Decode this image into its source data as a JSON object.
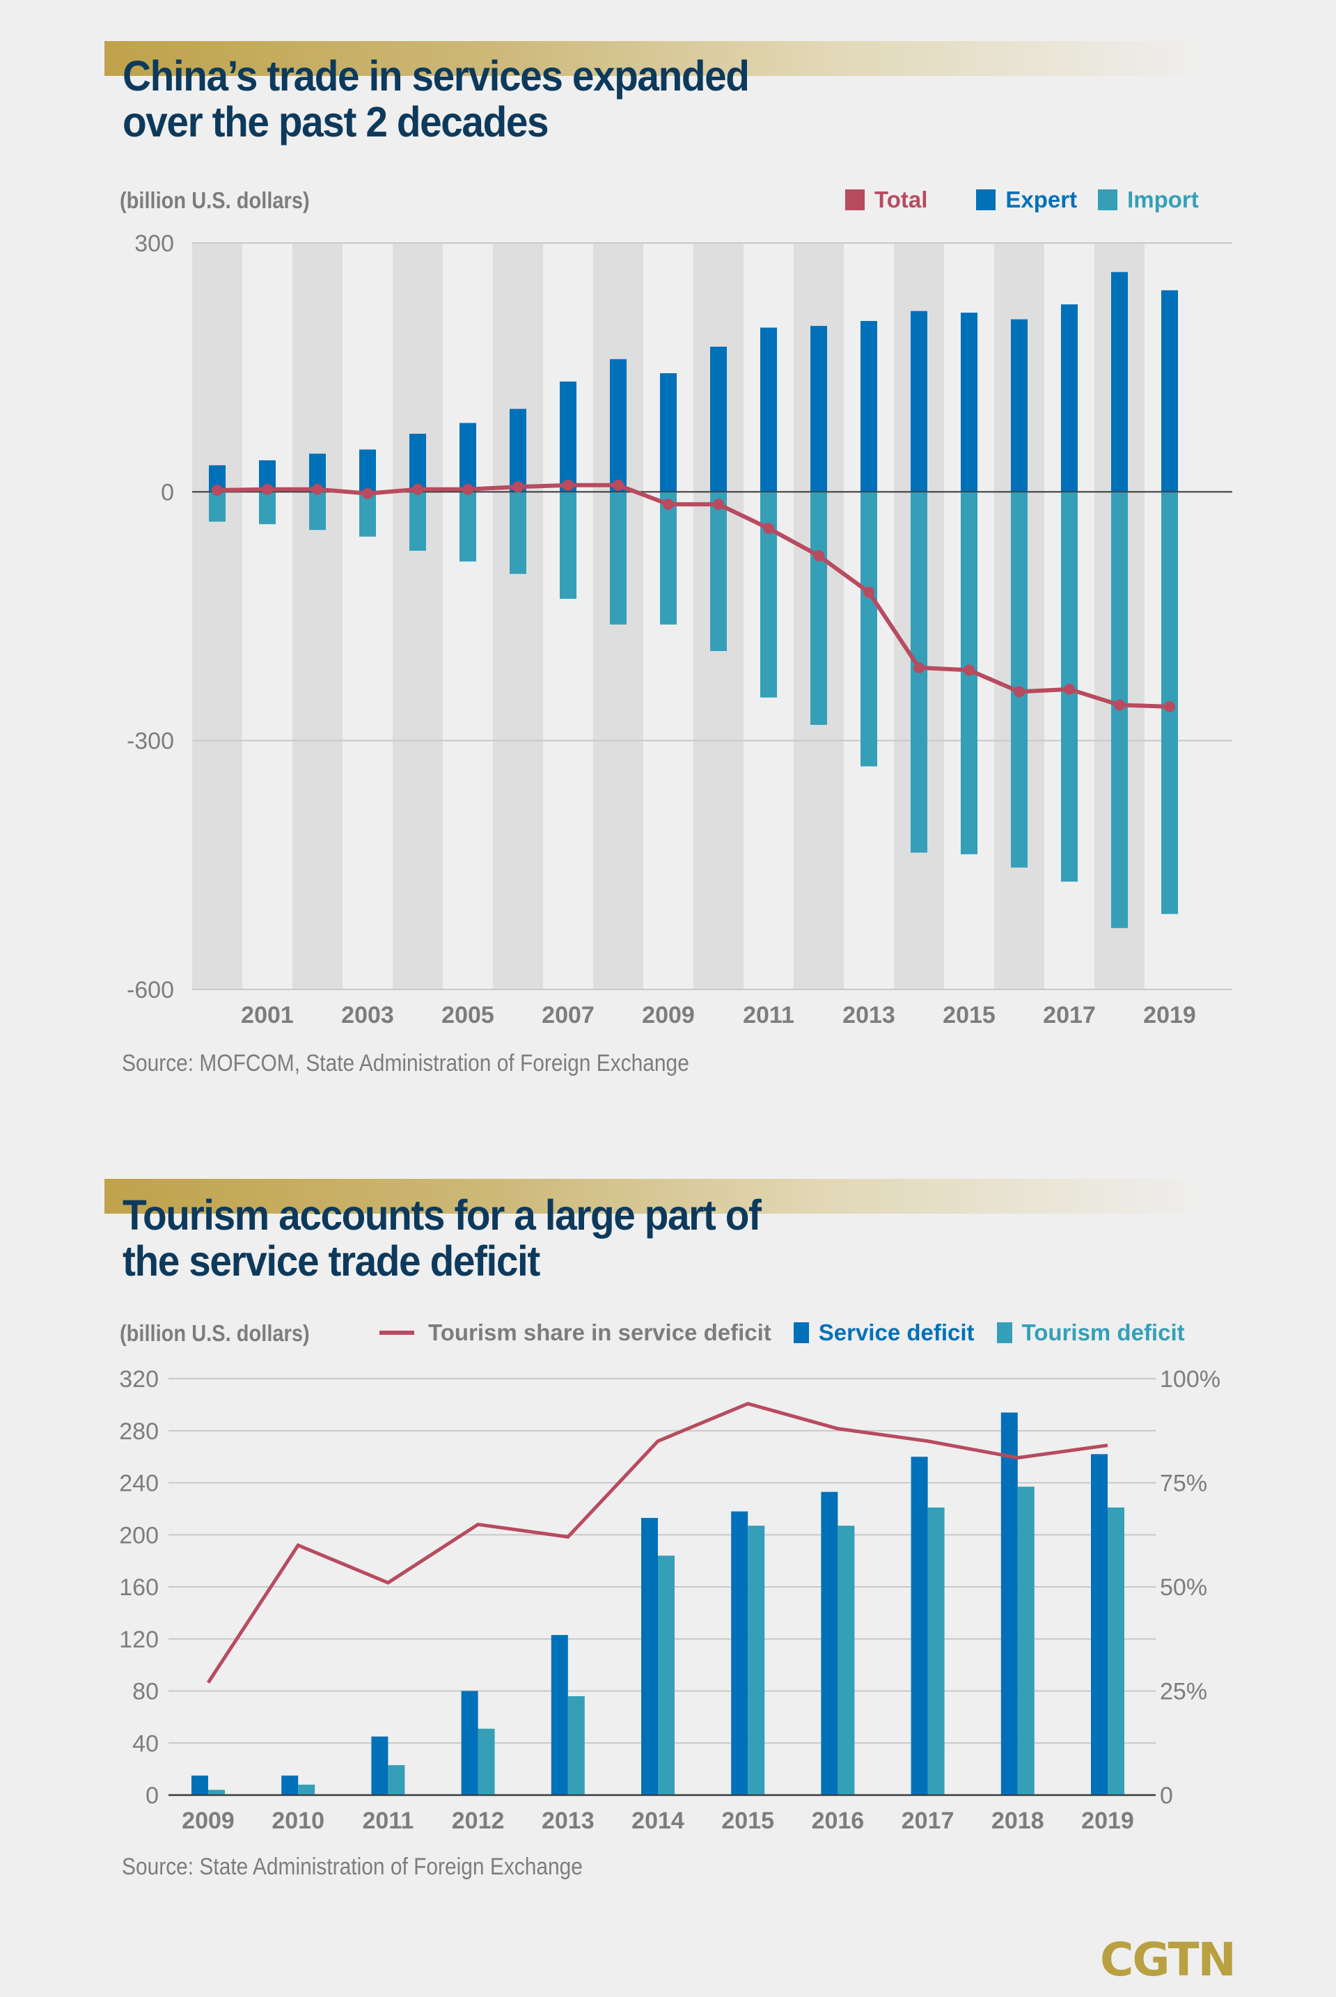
{
  "colors": {
    "total": "#b84b5f",
    "export": "#0070b8",
    "import": "#359fb8",
    "axis_text": "#7d7d7d",
    "title": "#0d3a5c",
    "brand_gold": "#b9a040",
    "stripe": "#dedede",
    "grid": "#c8c8c8"
  },
  "chart1": {
    "title_line1": "China’s trade in services expanded",
    "title_line2": "over the past 2 decades",
    "unit": "(billion U.S. dollars)",
    "source": "Source: MOFCOM, State Administration of Foreign Exchange"
  },
  "chart2": {
    "title_line1": "Tourism accounts for a large part of",
    "title_line2": "the service trade deficit",
    "unit": "(billion U.S. dollars)",
    "source": "Source: State Administration of Foreign Exchange"
  },
  "logo": "CGTN",
  "chart_data": [
    {
      "type": "bar",
      "title": "China’s trade in services expanded over the past 2 decades",
      "ylabel": "(billion U.S. dollars)",
      "xlabel": "",
      "ylim": [
        -600,
        300
      ],
      "yticks": [
        300,
        0,
        -300,
        -600
      ],
      "ytick_labels": [
        "300",
        "0",
        "-300",
        "-600"
      ],
      "x": [
        2000,
        2001,
        2002,
        2003,
        2004,
        2005,
        2006,
        2007,
        2008,
        2009,
        2010,
        2011,
        2012,
        2013,
        2014,
        2015,
        2016,
        2017,
        2018,
        2019
      ],
      "xtick_labels": [
        "2001",
        "2003",
        "2005",
        "2007",
        "2009",
        "2011",
        "2013",
        "2015",
        "2017",
        "2019"
      ],
      "legend": [
        "Total",
        "Expert",
        "Import"
      ],
      "legend_position": "top-right",
      "grid": true,
      "series": [
        {
          "name": "Total",
          "kind": "line",
          "values": [
            2,
            3,
            3,
            -2,
            3,
            3,
            6,
            8,
            8,
            -15,
            -15,
            -44,
            -77,
            -121,
            -212,
            -215,
            -241,
            -238,
            -257,
            -259
          ]
        },
        {
          "name": "Expert",
          "kind": "bar",
          "values": [
            32,
            38,
            46,
            51,
            70,
            83,
            100,
            133,
            160,
            143,
            175,
            198,
            200,
            206,
            218,
            216,
            208,
            226,
            265,
            243
          ]
        },
        {
          "name": "Import",
          "kind": "bar",
          "values": [
            -36,
            -39,
            -46,
            -54,
            -71,
            -84,
            -99,
            -129,
            -160,
            -160,
            -192,
            -248,
            -281,
            -331,
            -435,
            -437,
            -453,
            -470,
            -526,
            -509
          ]
        }
      ]
    },
    {
      "type": "bar",
      "title": "Tourism accounts for a large part of the service trade deficit",
      "ylabel": "(billion U.S. dollars)",
      "xlabel": "",
      "ylim": [
        0,
        320
      ],
      "yticks": [
        0,
        40,
        80,
        120,
        160,
        200,
        240,
        280,
        320
      ],
      "ytick_labels": [
        "0",
        "40",
        "80",
        "120",
        "160",
        "200",
        "240",
        "280",
        "320"
      ],
      "y2lim": [
        0,
        100
      ],
      "y2ticks": [
        0,
        25,
        50,
        75,
        100
      ],
      "y2tick_labels": [
        "0",
        "25%",
        "50%",
        "75%",
        "100%"
      ],
      "categories": [
        "2009",
        "2010",
        "2011",
        "2012",
        "2013",
        "2014",
        "2015",
        "2016",
        "2017",
        "2018",
        "2019"
      ],
      "legend": [
        "Tourism share in service deficit",
        "Service deficit",
        "Tourism deficit"
      ],
      "legend_position": "top",
      "grid": true,
      "series": [
        {
          "name": "Tourism share in service deficit",
          "kind": "line",
          "axis": "right",
          "unit": "%",
          "values": [
            27,
            60,
            51,
            65,
            62,
            85,
            94,
            88,
            85,
            81,
            84
          ]
        },
        {
          "name": "Service deficit",
          "kind": "bar",
          "values": [
            15,
            15,
            45,
            80,
            123,
            213,
            218,
            233,
            260,
            294,
            262
          ]
        },
        {
          "name": "Tourism deficit",
          "kind": "bar",
          "values": [
            4,
            8,
            23,
            51,
            76,
            184,
            207,
            207,
            221,
            237,
            221
          ]
        }
      ]
    }
  ]
}
